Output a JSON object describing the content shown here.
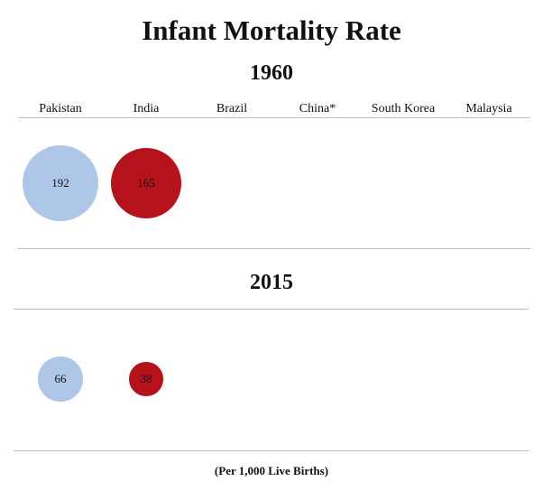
{
  "chart_data": {
    "type": "bubble",
    "title": "Infant Mortality Rate",
    "note": "(Per 1,000 Live Births)",
    "categories": [
      "Pakistan",
      "India",
      "Brazil",
      "China*",
      "South Korea",
      "Malaysia"
    ],
    "panels": [
      {
        "year": "1960",
        "values": [
          192,
          165,
          null,
          null,
          null,
          null
        ]
      },
      {
        "year": "2015",
        "values": [
          66,
          38,
          null,
          null,
          null,
          null
        ]
      }
    ],
    "colors": [
      "#aec7e8",
      "#b5121b",
      "#ffffff",
      "#ffffff",
      "#ffffff",
      "#ffffff"
    ]
  }
}
